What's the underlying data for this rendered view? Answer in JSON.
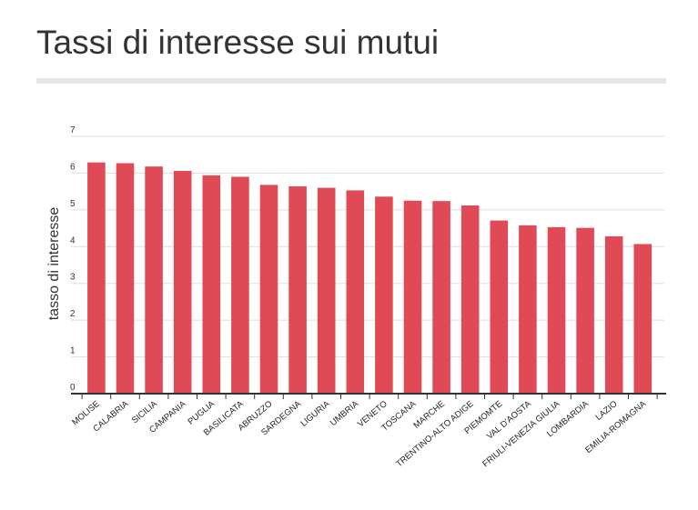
{
  "chart_data": {
    "type": "bar",
    "title": "Tassi di interesse sui mutui",
    "xlabel": "",
    "ylabel": "tasso di interesse",
    "ylim": [
      0,
      7
    ],
    "yticks": [
      0,
      1,
      2,
      3,
      4,
      5,
      6,
      7
    ],
    "grid": true,
    "bar_color": "#e04a57",
    "categories": [
      "MOLISE",
      "CALABRIA",
      "SICILIA",
      "CAMPANIA",
      "PUGLIA",
      "BASILICATA",
      "ABRUZZO",
      "SARDEGNA",
      "LIGURIA",
      "UMBRIA",
      "VENETO",
      "TOSCANA",
      "MARCHE",
      "TRENTINO-ALTO ADIGE",
      "PIEMOMTE",
      "VAL D'AOSTA",
      "FRIULI-VENEZIA GIULIA",
      "LOMBARDIA",
      "LAZIO",
      "EMILIA-ROMAGNA"
    ],
    "values": [
      6.29,
      6.27,
      6.18,
      6.06,
      5.94,
      5.9,
      5.68,
      5.64,
      5.6,
      5.53,
      5.36,
      5.25,
      5.24,
      5.12,
      4.71,
      4.58,
      4.53,
      4.51,
      4.28,
      4.07
    ]
  }
}
